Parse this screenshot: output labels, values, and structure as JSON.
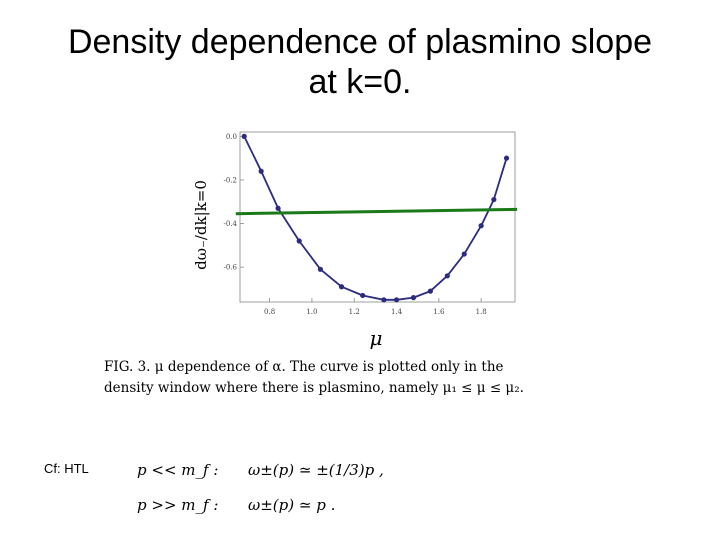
{
  "slide": {
    "title_line1": "Density dependence of plasmino slope",
    "title_line2": "at k=0.",
    "cf_label": "Cf: HTL"
  },
  "caption": {
    "line1": "FIG. 3.  μ dependence of α.  The curve is plotted only in the",
    "line2": "density window where there is plasmino, namely μ₁ ≤ μ ≤ μ₂."
  },
  "formulas": {
    "row1_cond": "p << m_f :",
    "row1_expr": "ω±(p) ≃ ±(1/3)p ,",
    "row2_cond": "p >> m_f :",
    "row2_expr": "ω±(p) ≃ p ."
  },
  "chart_data": {
    "type": "line",
    "xlabel": "μ",
    "ylabel": "dω₋/dk|k=0",
    "xlim": [
      0.66,
      1.96
    ],
    "ylim": [
      -0.76,
      0.02
    ],
    "x_ticks": [
      0.8,
      1.0,
      1.2,
      1.4,
      1.6,
      1.8
    ],
    "x_tick_labels": [
      "0.8",
      "1.0",
      "1.2",
      "1.4",
      "1.6",
      "1.8"
    ],
    "y_ticks": [
      0.0,
      -0.2,
      -0.4,
      -0.6
    ],
    "y_tick_labels": [
      "0.0",
      "-0.2",
      "-0.4",
      "-0.6"
    ],
    "grid": false,
    "series": [
      {
        "color": "#2b2b80",
        "markers": true,
        "x": [
          0.68,
          0.76,
          0.84,
          0.94,
          1.04,
          1.14,
          1.24,
          1.34,
          1.4,
          1.48,
          1.56,
          1.64,
          1.72,
          1.8,
          1.86,
          1.92
        ],
        "y": [
          0.0,
          -0.16,
          -0.33,
          -0.48,
          -0.61,
          -0.69,
          -0.73,
          -0.75,
          -0.75,
          -0.74,
          -0.71,
          -0.64,
          -0.54,
          -0.41,
          -0.29,
          -0.1
        ]
      },
      {
        "color": "#1a7a1a",
        "markers": false,
        "x": [
          0.64,
          1.97
        ],
        "y": [
          -0.355,
          -0.335
        ]
      }
    ]
  }
}
